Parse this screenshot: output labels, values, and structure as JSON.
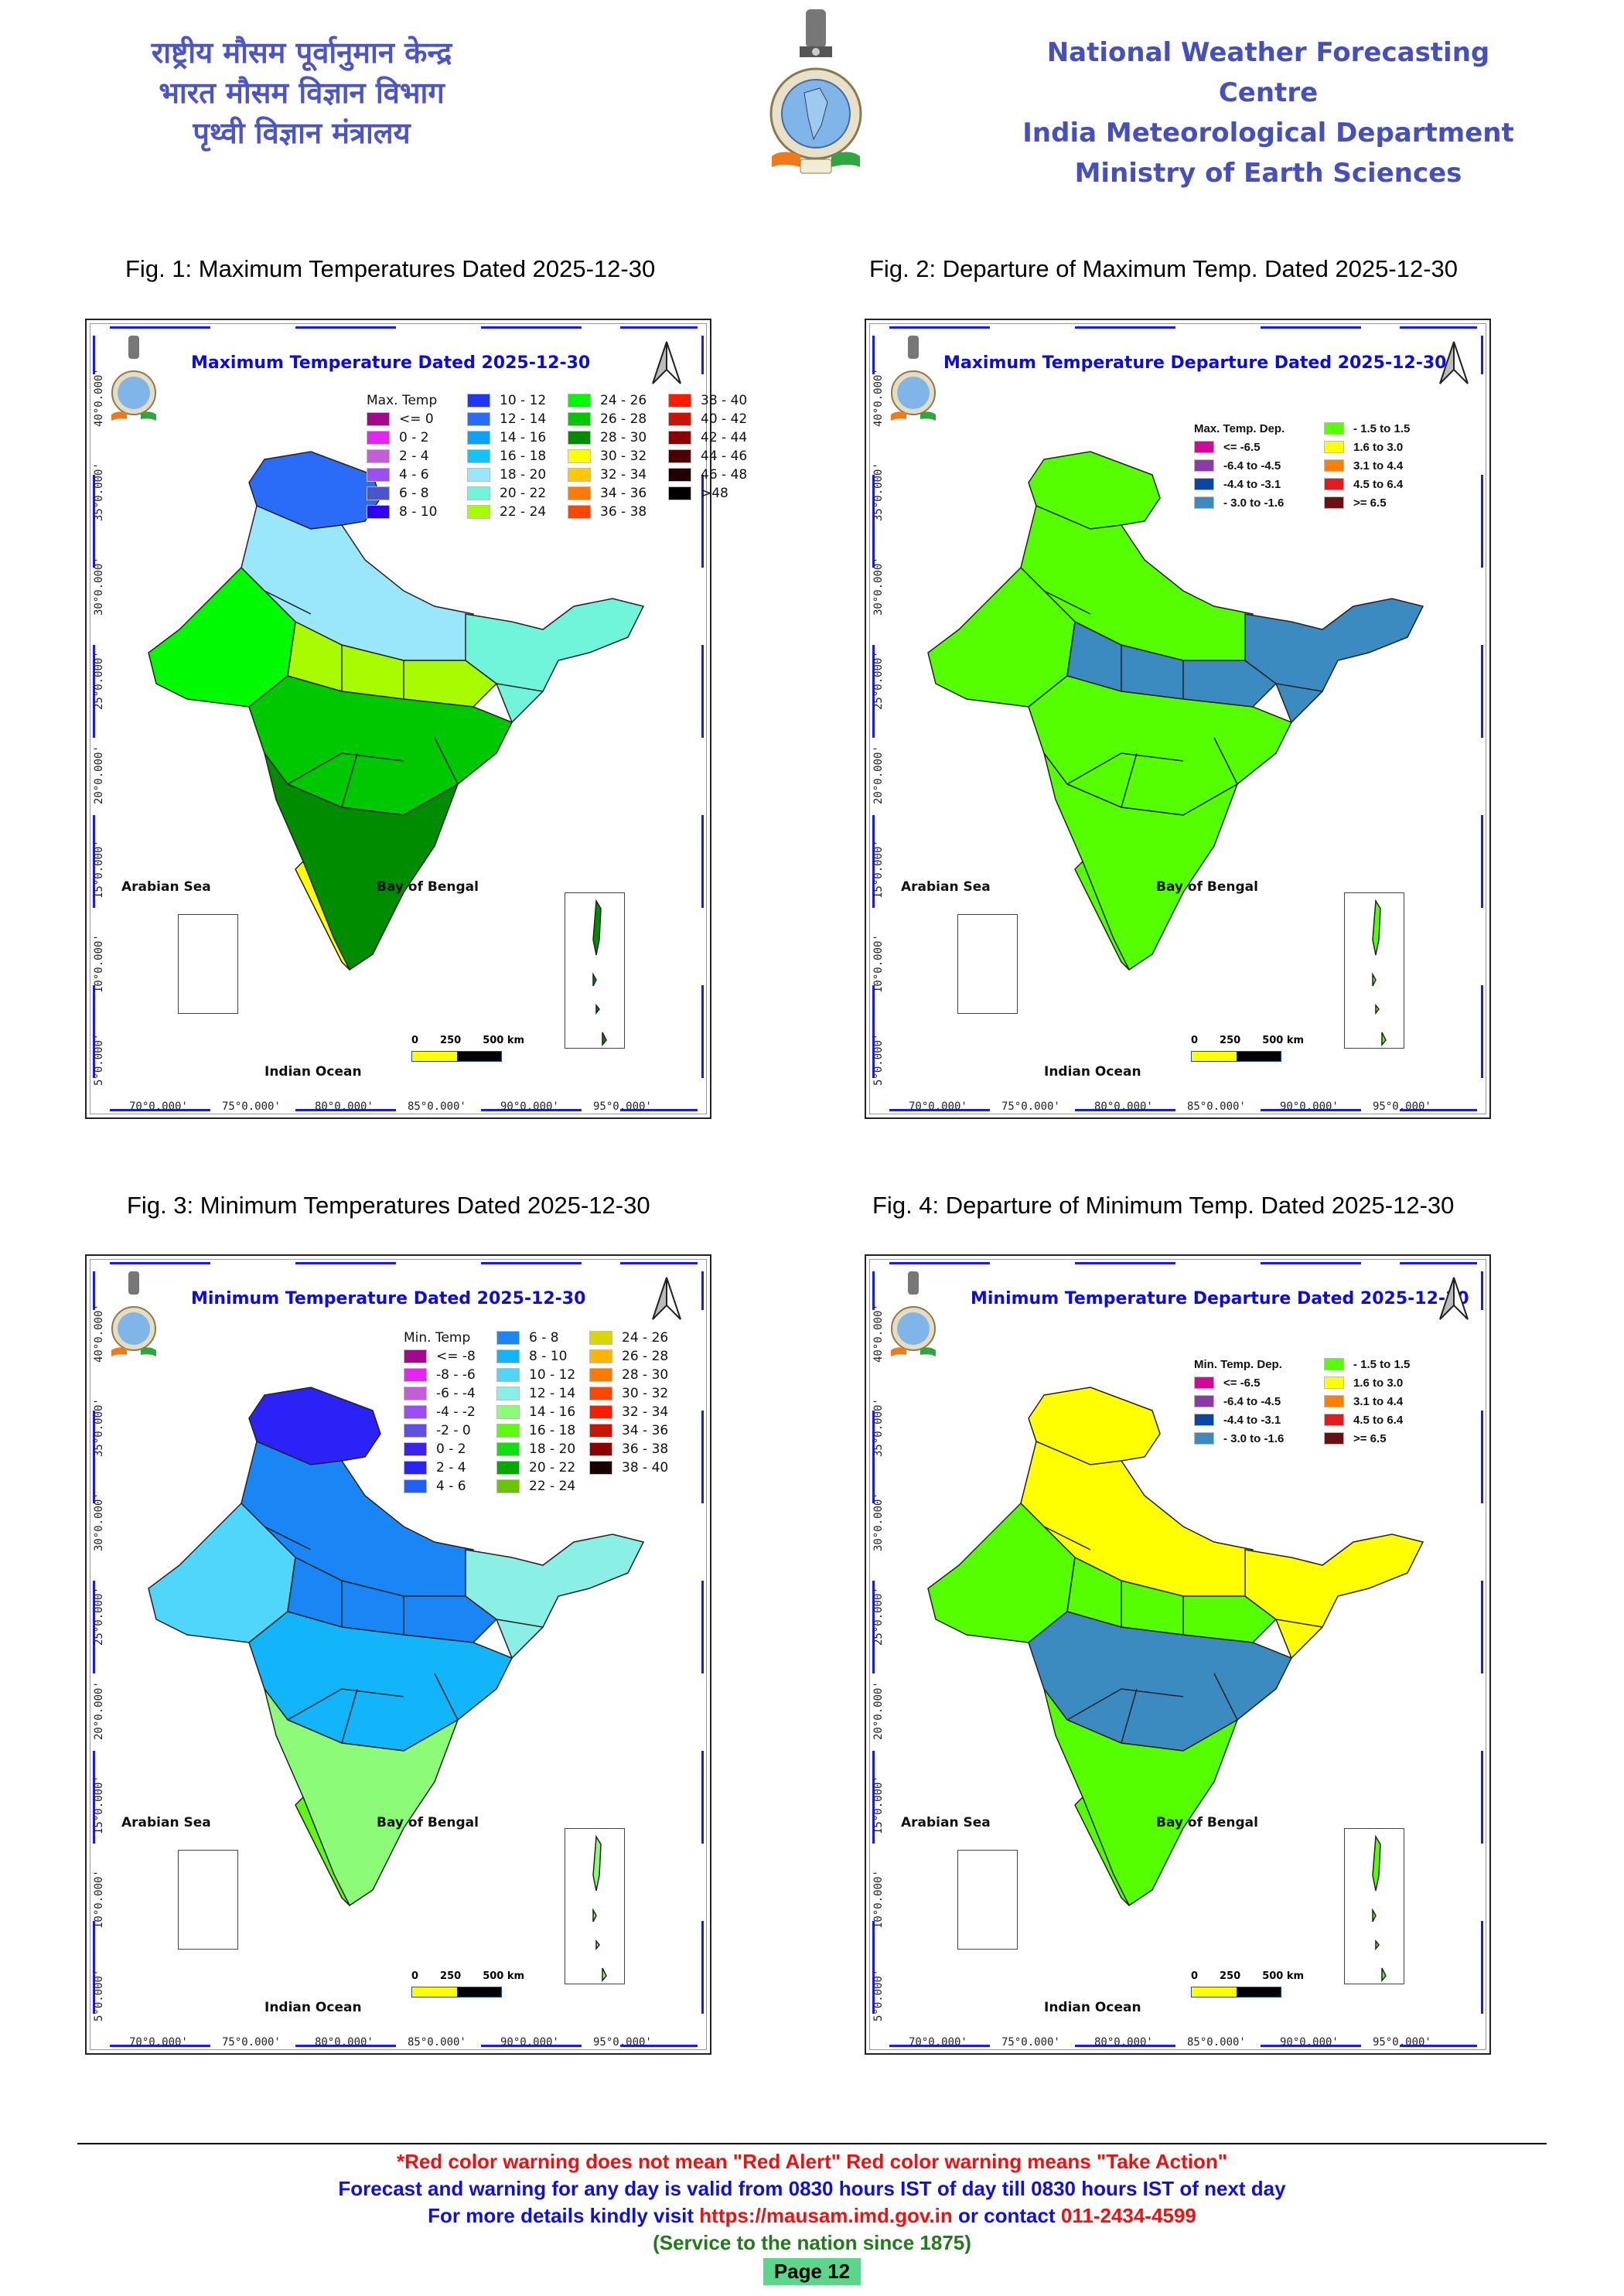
{
  "header": {
    "hindi_lines": [
      "राष्ट्रीय मौसम पूर्वानुमान केन्द्र",
      "भारत मौसम विज्ञान विभाग",
      "पृथ्वी विज्ञान मंत्रालय"
    ],
    "english_lines": [
      "National Weather Forecasting Centre",
      "India Meteorological Department",
      "Ministry of Earth Sciences"
    ],
    "logo": "imd-emblem-logo"
  },
  "figures": [
    {
      "caption": "Fig. 1: Maximum Temperatures Dated 2025-12-30",
      "map_title": "Maximum Temperature Dated 2025-12-30",
      "legend_title": "Max. Temp",
      "legend_items": [
        {
          "label": "<= 0",
          "color": "#a3078c"
        },
        {
          "label": "0 - 2",
          "color": "#e526f2"
        },
        {
          "label": "2 - 4",
          "color": "#c45ed6"
        },
        {
          "label": "4 - 6",
          "color": "#9b4ff2"
        },
        {
          "label": "6 - 8",
          "color": "#4a55cc"
        },
        {
          "label": "8 - 10",
          "color": "#3000f5"
        },
        {
          "label": "10 - 12",
          "color": "#2035f5"
        },
        {
          "label": "12 - 14",
          "color": "#2a6cf7"
        },
        {
          "label": "14 - 16",
          "color": "#0aa2fa"
        },
        {
          "label": "16 - 18",
          "color": "#11c4fb"
        },
        {
          "label": "18 - 20",
          "color": "#9ae6fa"
        },
        {
          "label": "20 - 22",
          "color": "#70f5da"
        },
        {
          "label": "22 - 24",
          "color": "#a8fb00"
        },
        {
          "label": "24 - 26",
          "color": "#00fb00"
        },
        {
          "label": "26 - 28",
          "color": "#00c800"
        },
        {
          "label": "28 - 30",
          "color": "#008c00"
        },
        {
          "label": "30 - 32",
          "color": "#ffff00"
        },
        {
          "label": "32 - 34",
          "color": "#ffc800"
        },
        {
          "label": "34 - 36",
          "color": "#ff7a00"
        },
        {
          "label": "36 - 38",
          "color": "#ff4600"
        },
        {
          "label": "38 - 40",
          "color": "#ff1a00"
        },
        {
          "label": "40 - 42",
          "color": "#c81400"
        },
        {
          "label": "42 - 44",
          "color": "#8c0000"
        },
        {
          "label": "44 - 46",
          "color": "#4a0000"
        },
        {
          "label": "46 - 48",
          "color": "#220000"
        },
        {
          "label": ">48",
          "color": "#000000"
        }
      ],
      "map_colors": {
        "north": "#2a6cf7",
        "north_mid": "#9ae6fa",
        "center": "#00c800",
        "south": "#008c00",
        "west": "#00fb00",
        "band": "#a8fb00",
        "east": "#70f5da",
        "coast": "#ffff00"
      }
    },
    {
      "caption": "Fig. 2: Departure of Maximum Temp. Dated 2025-12-30",
      "map_title": "Maximum Temperature Departure Dated 2025-12-30",
      "legend_title": "Max. Temp. Dep.",
      "legend_items": [
        {
          "label": "<= -6.5",
          "color": "#d4079b"
        },
        {
          "label": "-6.4 to -4.5",
          "color": "#8b3aa8"
        },
        {
          "label": "-4.4 to -3.1",
          "color": "#0a46a8"
        },
        {
          "label": "- 3.0 to -1.6",
          "color": "#3b8ac0"
        },
        {
          "label": "- 1.5 to 1.5",
          "color": "#55ff00"
        },
        {
          "label": "1.6 to  3.0",
          "color": "#ffff00"
        },
        {
          "label": "3.1 to 4.4",
          "color": "#ff7f00"
        },
        {
          "label": "4.5 to 6.4",
          "color": "#e41a1c"
        },
        {
          "label": ">= 6.5",
          "color": "#6a0f12"
        }
      ],
      "map_colors": {
        "north": "#55ff00",
        "north_mid": "#55ff00",
        "center": "#55ff00",
        "south": "#55ff00",
        "west": "#55ff00",
        "band": "#3b8ac0",
        "east": "#3b8ac0",
        "coast": "#55ff00"
      }
    },
    {
      "caption": "Fig. 3: Minimum Temperatures Dated 2025-12-30",
      "map_title": "Minimum Temperature Dated 2025-12-30",
      "legend_title": "Min. Temp",
      "legend_items": [
        {
          "label": "<= -8",
          "color": "#a3078c"
        },
        {
          "label": "-8 - -6",
          "color": "#e526f2"
        },
        {
          "label": "-6 - -4",
          "color": "#c45ed6"
        },
        {
          "label": "-4 - -2",
          "color": "#9b4ff2"
        },
        {
          "label": "-2 - 0",
          "color": "#6050e0"
        },
        {
          "label": "0 - 2",
          "color": "#3d22ec"
        },
        {
          "label": "2 - 4",
          "color": "#2a22f7"
        },
        {
          "label": "4 - 6",
          "color": "#2060f7"
        },
        {
          "label": "6 - 8",
          "color": "#1a86f5"
        },
        {
          "label": "8 - 10",
          "color": "#13b5fa"
        },
        {
          "label": "10 - 12",
          "color": "#4fd6fa"
        },
        {
          "label": "12 - 14",
          "color": "#8af0e6"
        },
        {
          "label": "14 - 16",
          "color": "#8cfb78"
        },
        {
          "label": "16 - 18",
          "color": "#5cfb10"
        },
        {
          "label": "18 - 20",
          "color": "#10e010"
        },
        {
          "label": "20 - 22",
          "color": "#00aa00"
        },
        {
          "label": "22 - 24",
          "color": "#6ac400"
        },
        {
          "label": "24 - 26",
          "color": "#d8d800"
        },
        {
          "label": "26 - 28",
          "color": "#ffb400"
        },
        {
          "label": "28 - 30",
          "color": "#ff7a00"
        },
        {
          "label": "30 - 32",
          "color": "#ff4600"
        },
        {
          "label": "32 - 34",
          "color": "#f51e00"
        },
        {
          "label": "34 - 36",
          "color": "#c81400"
        },
        {
          "label": "36 - 38",
          "color": "#8c0000"
        },
        {
          "label": "38 - 40",
          "color": "#1c0000"
        }
      ],
      "map_colors": {
        "north": "#2a22f7",
        "north_mid": "#1a86f5",
        "center": "#13b5fa",
        "south": "#8cfb78",
        "west": "#4fd6fa",
        "band": "#1a86f5",
        "east": "#8af0e6",
        "coast": "#5cfb10"
      }
    },
    {
      "caption": "Fig. 4: Departure of Minimum Temp. Dated 2025-12-30",
      "map_title": "Minimum Temperature Departure Dated 2025-12-30",
      "legend_title": "Min. Temp. Dep.",
      "legend_items": [
        {
          "label": "<= -6.5",
          "color": "#d4079b"
        },
        {
          "label": "-6.4 to -4.5",
          "color": "#8b3aa8"
        },
        {
          "label": "-4.4 to -3.1",
          "color": "#0a46a8"
        },
        {
          "label": "- 3.0 to -1.6",
          "color": "#3b8ac0"
        },
        {
          "label": "- 1.5 to 1.5",
          "color": "#55ff00"
        },
        {
          "label": "1.6 to  3.0",
          "color": "#ffff00"
        },
        {
          "label": "3.1 to 4.4",
          "color": "#ff7f00"
        },
        {
          "label": "4.5 to 6.4",
          "color": "#e41a1c"
        },
        {
          "label": ">= 6.5",
          "color": "#6a0f12"
        }
      ],
      "map_colors": {
        "north": "#ffff00",
        "north_mid": "#ffff00",
        "center": "#3b8ac0",
        "south": "#55ff00",
        "west": "#55ff00",
        "band": "#55ff00",
        "east": "#ffff00",
        "coast": "#55ff00"
      }
    }
  ],
  "map_common": {
    "lat_labels": [
      "40°0.000'",
      "35°0.000'",
      "30°0.000'",
      "25°0.000'",
      "20°0.000'",
      "15°0.000'",
      "10°0.000'",
      "5°0.000'"
    ],
    "lon_labels": [
      "70°0.000'",
      "75°0.000'",
      "80°0.000'",
      "85°0.000'",
      "90°0.000'",
      "95°0.000'"
    ],
    "sea_labels": {
      "arabian": "Arabian Sea",
      "bengal": "Bay of Bengal",
      "indian": "Indian Ocean"
    },
    "scale": {
      "labels": [
        "0",
        "250",
        "500 km"
      ]
    }
  },
  "footer": {
    "warning": "*Red color warning does not mean \"Red Alert\" Red color warning means \"Take Action\"",
    "validity": "Forecast and warning for any day is valid from 0830 hours IST of day till 0830 hours IST of next day",
    "details_prefix": "For more details kindly visit ",
    "url": "https://mausam.imd.gov.in",
    "contact_mid": " or contact ",
    "phone": "011-2434-4599",
    "service": "(Service to the nation since 1875)",
    "page": "Page 12"
  }
}
